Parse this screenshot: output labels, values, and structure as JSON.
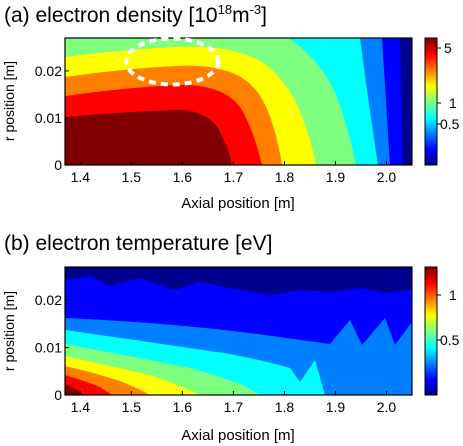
{
  "chart_data": [
    {
      "type": "heatmap",
      "panel": "(a)",
      "title_main": "(a) electron density [10",
      "title_exp1": "18",
      "title_mid": "m",
      "title_exp2": "-3",
      "title_end": "]",
      "xlabel": "Axial position [m]",
      "ylabel": "r position [m]",
      "xlim": [
        1.37,
        2.05
      ],
      "ylim": [
        0,
        0.027
      ],
      "xticks": [
        "1.4",
        "1.5",
        "1.6",
        "1.7",
        "1.8",
        "1.9",
        "2.0"
      ],
      "yticks": [
        "0",
        "0.01",
        "0.02"
      ],
      "colorbar_ticks": [
        "5",
        "1",
        "0.5"
      ],
      "annotation": "dashed ellipse near axial 1.58 m, r 0.022 m",
      "annotation_center": [
        1.58,
        0.022
      ]
    },
    {
      "type": "heatmap",
      "panel": "(b)",
      "title": "(b) electron temperature [eV]",
      "xlabel": "Axial position [m]",
      "ylabel": "r position [m]",
      "xlim": [
        1.37,
        2.05
      ],
      "ylim": [
        0,
        0.027
      ],
      "xticks": [
        "1.4",
        "1.5",
        "1.6",
        "1.7",
        "1.8",
        "1.9",
        "2.0"
      ],
      "yticks": [
        "0",
        "0.01",
        "0.02"
      ],
      "colorbar_ticks": [
        "1",
        "0.5"
      ]
    }
  ],
  "colors": {
    "jet": [
      "#00008f",
      "#0000ff",
      "#007fff",
      "#00ffff",
      "#7fff7f",
      "#ffff00",
      "#ff7f00",
      "#ff0000",
      "#7f0000"
    ]
  }
}
